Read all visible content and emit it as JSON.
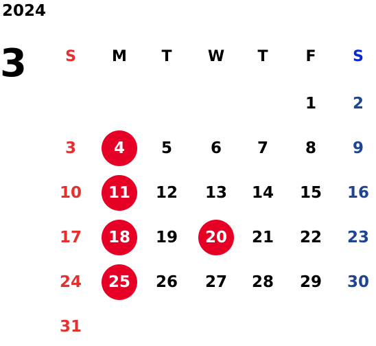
{
  "year": "2024",
  "month": "3",
  "weekdays": [
    {
      "label": "S",
      "color": "#e53030"
    },
    {
      "label": "M",
      "color": "#000000"
    },
    {
      "label": "T",
      "color": "#000000"
    },
    {
      "label": "W",
      "color": "#000000"
    },
    {
      "label": "T",
      "color": "#000000"
    },
    {
      "label": "F",
      "color": "#000000"
    },
    {
      "label": "S",
      "color": "#0a28d0"
    }
  ],
  "first_weekday_index": 5,
  "days_in_month": 31,
  "colors": {
    "sunday": "#e53030",
    "saturday": "#1e4591",
    "weekday": "#000000",
    "highlight_bg": "#e60026",
    "highlight_text": "#ffffff"
  },
  "highlighted_days": [
    4,
    11,
    18,
    20,
    25
  ]
}
